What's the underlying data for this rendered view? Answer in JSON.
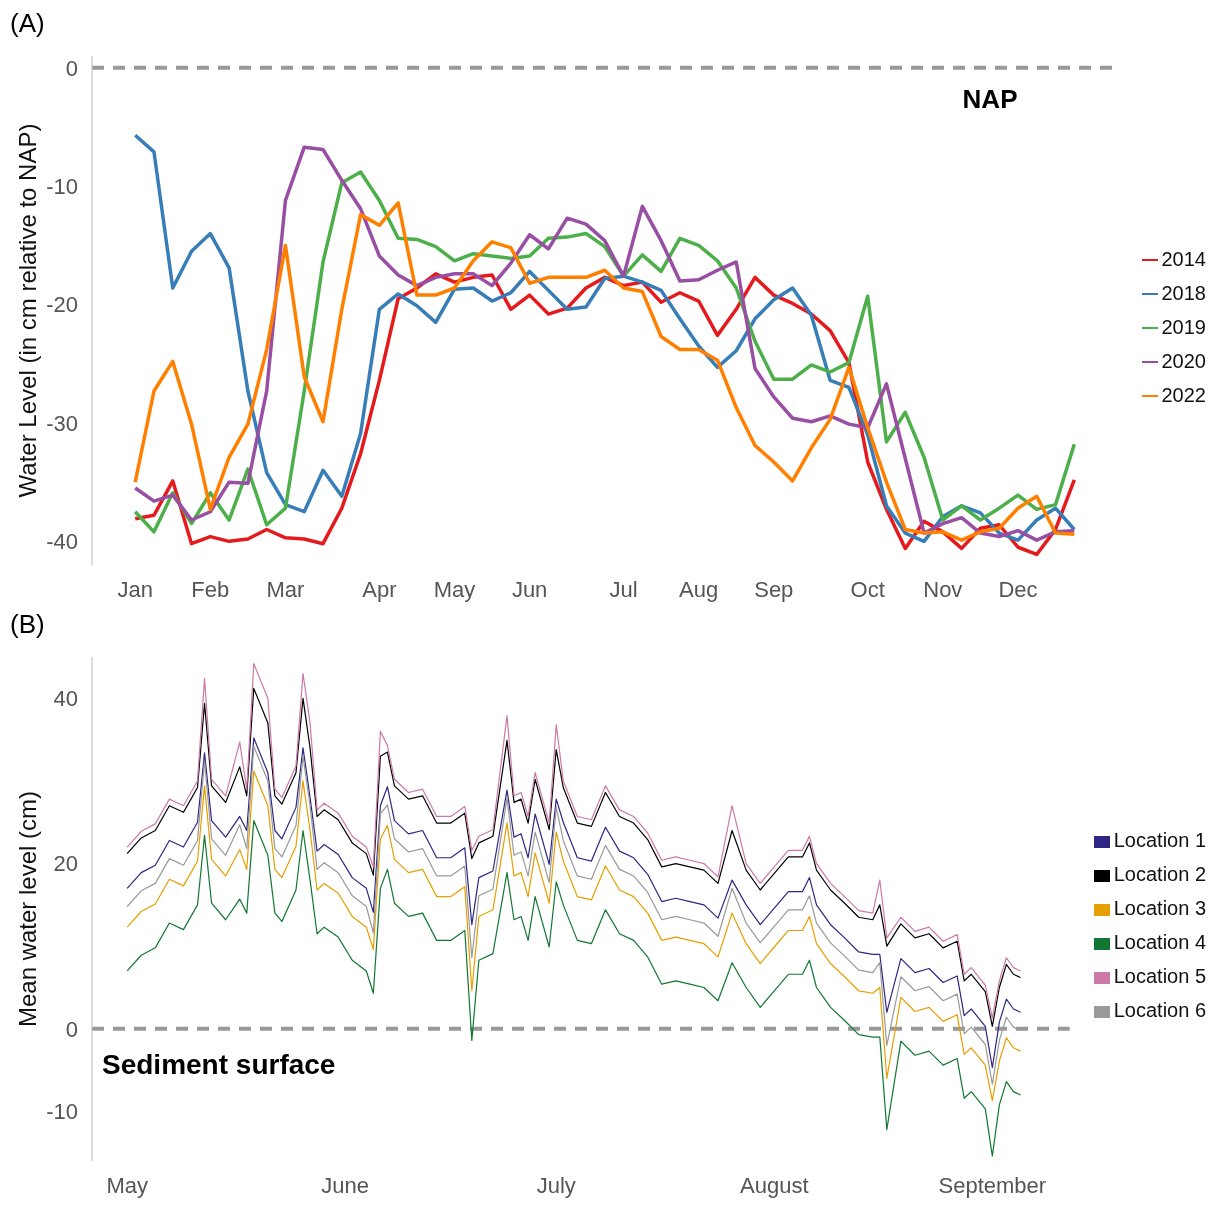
{
  "chart_data": [
    {
      "type": "line",
      "title": "(A)",
      "ylabel": "Water Level (in cm relative to NAP)",
      "categories": [
        "Jan",
        null,
        null,
        null,
        "Feb",
        null,
        null,
        null,
        "Mar",
        null,
        null,
        null,
        null,
        "Apr",
        null,
        null,
        null,
        "May",
        null,
        null,
        null,
        "Jun",
        null,
        null,
        null,
        null,
        "Jul",
        null,
        null,
        null,
        "Aug",
        null,
        null,
        null,
        "Sep",
        null,
        null,
        null,
        null,
        "Oct",
        null,
        null,
        null,
        "Nov",
        null,
        null,
        null,
        "Dec",
        null,
        null,
        null
      ],
      "ylim": [
        -42,
        1
      ],
      "yticks": [
        -40,
        -30,
        -20,
        -10,
        0
      ],
      "legend": "right",
      "ref_lines": [
        {
          "axis": "y",
          "value": 0,
          "label": "NAP",
          "color": "#999999",
          "line_style": "dashed"
        }
      ],
      "series": [
        {
          "name": "2014",
          "color": "#e41a1c",
          "values": [
            -38.1,
            -37.8,
            -34.9,
            -40.2,
            -39.6,
            -40.0,
            -39.8,
            -39.0,
            -39.7,
            -39.8,
            -40.2,
            -37.2,
            -32.6,
            -26.4,
            -19.5,
            -18.6,
            -17.4,
            -18.1,
            -17.7,
            -17.5,
            -20.4,
            -19.2,
            -20.8,
            -20.3,
            -18.6,
            -17.7,
            -18.4,
            -18.1,
            -19.8,
            -19.0,
            -19.7,
            -22.6,
            -20.4,
            -17.7,
            -19.2,
            -19.9,
            -20.8,
            -22.2,
            -24.9,
            -33.3,
            -37.3,
            -40.6,
            -38.3,
            -39.2,
            -40.6,
            -38.9,
            -38.6,
            -40.5,
            -41.1,
            -39.0,
            -34.8
          ]
        },
        {
          "name": "2018",
          "color": "#377eb8",
          "values": [
            -5.7,
            -7.1,
            -18.6,
            -15.5,
            -14.0,
            -16.9,
            -27.3,
            -34.2,
            -36.9,
            -37.5,
            -34.0,
            -36.2,
            -30.9,
            -20.4,
            -19.1,
            -20.1,
            -21.5,
            -18.7,
            -18.6,
            -19.7,
            -19.0,
            -17.2,
            -18.8,
            -20.4,
            -20.2,
            -17.8,
            -17.6,
            -18.1,
            -18.8,
            -21.2,
            -23.5,
            -25.3,
            -23.9,
            -21.2,
            -19.6,
            -18.6,
            -20.9,
            -26.4,
            -27.0,
            -31.0,
            -37.0,
            -39.3,
            -40.0,
            -37.9,
            -37.0,
            -37.6,
            -39.3,
            -39.9,
            -38.2,
            -37.2,
            -39.0
          ]
        },
        {
          "name": "2019",
          "color": "#4daf4a",
          "values": [
            -37.5,
            -39.2,
            -35.9,
            -38.5,
            -35.9,
            -38.2,
            -33.9,
            -38.6,
            -37.2,
            -27.3,
            -16.4,
            -9.7,
            -8.8,
            -11.2,
            -14.4,
            -14.5,
            -15.1,
            -16.3,
            -15.7,
            -15.9,
            -16.1,
            -15.9,
            -14.4,
            -14.3,
            -14.0,
            -15.1,
            -17.6,
            -15.8,
            -17.2,
            -14.4,
            -15.0,
            -16.3,
            -18.6,
            -23.1,
            -26.3,
            -26.3,
            -25.1,
            -25.7,
            -24.9,
            -19.3,
            -31.6,
            -29.1,
            -32.9,
            -38.2,
            -37.0,
            -38.2,
            -37.2,
            -36.1,
            -37.3,
            -36.9,
            -31.8
          ]
        },
        {
          "name": "2020",
          "color": "#984ea3",
          "values": [
            -35.5,
            -36.6,
            -36.1,
            -38.2,
            -37.5,
            -35.0,
            -35.1,
            -27.3,
            -11.2,
            -6.7,
            -6.9,
            -9.5,
            -11.9,
            -15.9,
            -17.5,
            -18.4,
            -17.7,
            -17.4,
            -17.4,
            -18.4,
            -16.5,
            -14.1,
            -15.3,
            -12.7,
            -13.2,
            -14.6,
            -17.6,
            -11.7,
            -14.6,
            -18.0,
            -17.9,
            -17.1,
            -16.4,
            -25.4,
            -27.8,
            -29.6,
            -29.9,
            -29.4,
            -30.1,
            -30.4,
            -26.7,
            -33.0,
            -39.3,
            -38.5,
            -38.0,
            -39.3,
            -39.6,
            -39.1,
            -39.9,
            -39.2,
            -39.1
          ]
        },
        {
          "name": "2022",
          "color": "#ff7f00",
          "values": [
            -35.0,
            -27.3,
            -24.8,
            -30.1,
            -37.3,
            -32.9,
            -30.1,
            -23.8,
            -15.0,
            -26.1,
            -29.9,
            -20.4,
            -12.4,
            -13.3,
            -11.4,
            -19.2,
            -19.2,
            -18.6,
            -16.3,
            -14.7,
            -15.2,
            -18.2,
            -17.7,
            -17.7,
            -17.7,
            -17.1,
            -18.6,
            -18.9,
            -22.7,
            -23.8,
            -23.8,
            -24.7,
            -28.7,
            -31.9,
            -33.3,
            -34.9,
            -32.1,
            -29.7,
            -25.3,
            -30.4,
            -35.0,
            -39.0,
            -39.3,
            -39.2,
            -39.9,
            -39.2,
            -38.9,
            -37.2,
            -36.2,
            -39.3,
            -39.4
          ]
        }
      ]
    },
    {
      "type": "line",
      "title": "(B)",
      "ylabel": "Mean water level (cm)",
      "x": [
        "--05-01",
        "--05-03",
        "--05-05",
        "--05-07",
        "--05-09",
        "--05-11",
        "--05-12",
        "--05-13",
        "--05-15",
        "--05-17",
        "--05-18",
        "--05-19",
        "--05-21",
        "--05-22",
        "--05-23",
        "--05-25",
        "--05-26",
        "--05-27",
        "--05-28",
        "--05-29",
        "--05-31",
        "--06-02",
        "--06-04",
        "--06-05",
        "--06-06",
        "--06-07",
        "--06-08",
        "--06-10",
        "--06-12",
        "--06-14",
        "--06-16",
        "--06-18",
        "--06-19",
        "--06-20",
        "--06-22",
        "--06-24",
        "--06-25",
        "--06-26",
        "--06-27",
        "--06-28",
        "--06-30",
        "--07-01",
        "--07-02",
        "--07-04",
        "--07-06",
        "--07-08",
        "--07-10",
        "--07-12",
        "--07-14",
        "--07-16",
        "--07-18",
        "--07-20",
        "--07-22",
        "--07-24",
        "--07-26",
        "--07-28",
        "--07-30",
        "--08-01",
        "--08-03",
        "--08-05",
        "--08-06",
        "--08-07",
        "--08-09",
        "--08-11",
        "--08-13",
        "--08-15",
        "--08-16",
        "--08-17",
        "--08-19",
        "--08-21",
        "--08-23",
        "--08-25",
        "--08-27",
        "--08-28",
        "--08-29",
        "--08-31",
        "--09-01",
        "--09-02",
        "--09-03",
        "--09-04",
        "--09-05"
      ],
      "xlim": [
        "--04-26",
        "--09-12"
      ],
      "xticks": [
        {
          "value": "--05-01",
          "label": "May"
        },
        {
          "value": "--06-01",
          "label": "June"
        },
        {
          "value": "--07-01",
          "label": "July"
        },
        {
          "value": "--08-01",
          "label": "August"
        },
        {
          "value": "--09-01",
          "label": "September"
        }
      ],
      "ylim": [
        -16,
        45
      ],
      "yticks": [
        -10,
        0,
        20,
        40
      ],
      "legend": "right",
      "ref_lines": [
        {
          "axis": "y",
          "value": 0,
          "label": "Sediment surface",
          "color": "#999999",
          "line_style": "dashed"
        }
      ],
      "series": [
        {
          "name": "Location 1",
          "color": "#2e2585",
          "values": [
            17.0,
            18.9,
            19.8,
            22.8,
            22.0,
            25.0,
            33.4,
            25.2,
            23.2,
            25.7,
            24.0,
            35.2,
            31.0,
            24.0,
            23.0,
            26.8,
            34.0,
            28.0,
            21.5,
            22.3,
            21.1,
            18.3,
            17.0,
            14.1,
            27.0,
            29.3,
            25.2,
            23.6,
            24.0,
            20.7,
            20.7,
            21.9,
            12.6,
            18.3,
            19.1,
            28.9,
            23.2,
            23.6,
            20.7,
            26.0,
            19.9,
            27.8,
            25.0,
            20.7,
            20.3,
            24.4,
            21.5,
            20.7,
            18.7,
            15.4,
            15.8,
            15.4,
            15.0,
            13.4,
            18.0,
            15.0,
            12.6,
            14.6,
            16.6,
            16.6,
            18.3,
            15.0,
            12.6,
            11.0,
            9.3,
            9.0,
            9.0,
            2.0,
            8.5,
            6.8,
            7.3,
            5.6,
            6.4,
            1.6,
            2.4,
            0.3,
            -4.7,
            0.8,
            3.6,
            2.4,
            2.0
          ]
        },
        {
          "name": "Location 2",
          "color": "#000000",
          "values": [
            21.2,
            23.1,
            24.0,
            27.0,
            26.2,
            29.2,
            39.4,
            29.4,
            27.4,
            31.7,
            28.2,
            41.2,
            37.0,
            28.2,
            27.2,
            31.0,
            40.0,
            34.0,
            25.7,
            26.5,
            25.3,
            22.5,
            21.2,
            18.6,
            33.0,
            33.5,
            29.4,
            27.8,
            28.2,
            24.9,
            24.9,
            26.1,
            20.6,
            22.5,
            23.3,
            34.9,
            27.4,
            27.8,
            24.9,
            30.2,
            24.1,
            33.8,
            29.2,
            24.9,
            24.5,
            28.6,
            25.7,
            24.9,
            22.9,
            19.6,
            20.0,
            19.6,
            19.2,
            17.6,
            24.0,
            19.2,
            16.8,
            18.8,
            20.8,
            20.8,
            22.5,
            19.2,
            16.8,
            15.2,
            13.5,
            13.2,
            15.0,
            10.0,
            12.7,
            11.0,
            11.5,
            9.8,
            10.6,
            5.8,
            6.6,
            4.5,
            0.3,
            5.0,
            7.8,
            6.6,
            6.2
          ]
        },
        {
          "name": "Location 3",
          "color": "#e69f00",
          "values": [
            12.3,
            14.2,
            15.1,
            18.1,
            17.3,
            20.3,
            29.4,
            20.5,
            18.5,
            21.7,
            19.3,
            31.2,
            27.0,
            19.3,
            18.3,
            22.1,
            30.0,
            24.0,
            16.8,
            17.6,
            16.4,
            13.6,
            12.3,
            9.6,
            23.0,
            24.6,
            20.5,
            18.9,
            19.3,
            16.0,
            16.0,
            17.2,
            4.6,
            13.6,
            14.4,
            24.9,
            18.5,
            18.9,
            16.0,
            21.3,
            15.2,
            23.8,
            20.3,
            16.0,
            15.6,
            19.7,
            16.8,
            16.0,
            14.0,
            10.7,
            11.1,
            10.7,
            10.3,
            8.7,
            14.0,
            10.3,
            7.9,
            9.9,
            11.9,
            11.9,
            13.6,
            10.3,
            7.9,
            6.3,
            4.6,
            4.3,
            5.0,
            -6.0,
            3.8,
            2.1,
            2.6,
            0.9,
            1.7,
            -3.1,
            -2.3,
            -4.4,
            -8.7,
            -3.9,
            -1.1,
            -2.3,
            -2.7
          ]
        },
        {
          "name": "Location 4",
          "color": "#117733",
          "values": [
            7.0,
            8.9,
            9.8,
            12.8,
            12.0,
            15.0,
            23.4,
            15.2,
            13.2,
            15.7,
            14.0,
            25.2,
            21.0,
            14.0,
            13.0,
            16.8,
            24.0,
            18.0,
            11.5,
            12.3,
            11.1,
            8.3,
            7.0,
            4.3,
            17.0,
            19.3,
            15.2,
            13.6,
            14.0,
            10.7,
            10.7,
            11.9,
            -1.4,
            8.3,
            9.1,
            18.9,
            13.2,
            13.6,
            10.7,
            16.0,
            9.9,
            17.8,
            15.0,
            10.7,
            10.3,
            14.4,
            11.5,
            10.7,
            8.7,
            5.4,
            5.8,
            5.4,
            5.0,
            3.4,
            8.0,
            5.0,
            2.6,
            4.6,
            6.6,
            6.6,
            8.3,
            5.0,
            2.6,
            1.0,
            -0.7,
            -1.0,
            -1.0,
            -12.2,
            -1.5,
            -3.2,
            -2.7,
            -4.4,
            -3.6,
            -8.4,
            -7.6,
            -9.7,
            -15.4,
            -9.2,
            -6.4,
            -7.6,
            -8.0
          ]
        },
        {
          "name": "Location 5",
          "color": "#cc79a7",
          "values": [
            22.0,
            23.9,
            24.8,
            27.8,
            27.0,
            30.0,
            42.4,
            30.2,
            28.2,
            34.7,
            29.0,
            44.2,
            40.0,
            29.0,
            28.0,
            31.8,
            43.0,
            37.0,
            26.5,
            27.3,
            26.1,
            23.3,
            22.0,
            19.6,
            36.0,
            34.3,
            30.2,
            28.6,
            29.0,
            25.7,
            25.7,
            26.9,
            21.6,
            23.3,
            24.1,
            37.9,
            28.2,
            28.6,
            25.7,
            31.0,
            24.9,
            36.8,
            30.0,
            25.7,
            25.3,
            29.4,
            26.5,
            25.7,
            23.7,
            20.4,
            20.8,
            20.4,
            20.0,
            18.4,
            27.0,
            20.0,
            17.6,
            19.6,
            21.6,
            21.6,
            23.3,
            20.0,
            17.6,
            16.0,
            14.3,
            14.0,
            18.0,
            11.0,
            13.5,
            11.8,
            12.3,
            10.6,
            11.4,
            6.6,
            7.4,
            5.3,
            1.3,
            5.8,
            8.6,
            7.4,
            7.0
          ]
        },
        {
          "name": "Location 6",
          "color": "#999999",
          "values": [
            14.8,
            16.7,
            17.6,
            20.6,
            19.8,
            22.8,
            32.4,
            23.0,
            21.0,
            24.7,
            21.8,
            34.2,
            30.0,
            21.8,
            20.8,
            24.6,
            33.0,
            27.0,
            19.3,
            20.1,
            18.9,
            16.1,
            14.8,
            11.6,
            26.0,
            27.1,
            23.0,
            21.4,
            21.8,
            18.5,
            18.5,
            19.7,
            8.6,
            16.1,
            16.9,
            27.9,
            21.0,
            21.4,
            18.5,
            23.8,
            17.7,
            26.8,
            22.8,
            18.5,
            18.1,
            22.2,
            19.3,
            18.5,
            16.5,
            13.2,
            13.6,
            13.2,
            12.8,
            11.2,
            17.0,
            12.8,
            10.4,
            12.4,
            14.4,
            14.4,
            16.1,
            12.8,
            10.4,
            8.8,
            7.1,
            6.8,
            8.0,
            -2.0,
            6.3,
            4.6,
            5.1,
            3.4,
            4.2,
            -0.6,
            0.2,
            -1.9,
            -6.7,
            -1.4,
            1.4,
            0.2,
            -0.2
          ]
        }
      ]
    }
  ]
}
